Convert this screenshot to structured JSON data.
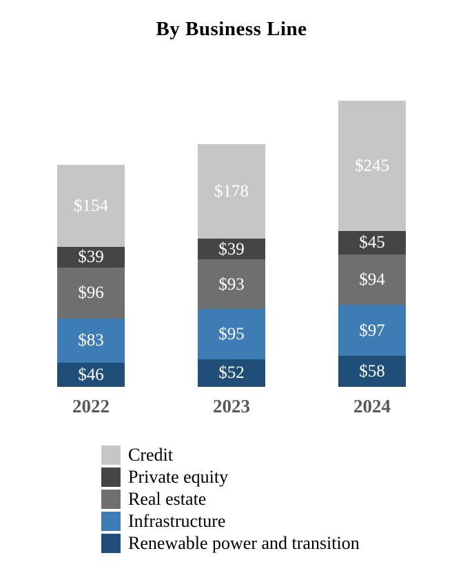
{
  "chart_data": {
    "type": "bar",
    "stacked": true,
    "title": "By Business Line",
    "categories": [
      "2022",
      "2023",
      "2024"
    ],
    "series": [
      {
        "name": "Credit",
        "color": "#C6C6C6",
        "values": [
          154,
          178,
          245
        ]
      },
      {
        "name": "Private equity",
        "color": "#454545",
        "values": [
          39,
          39,
          45
        ]
      },
      {
        "name": "Real estate",
        "color": "#6F6F6F",
        "values": [
          96,
          93,
          94
        ]
      },
      {
        "name": "Infrastructure",
        "color": "#3E7CB5",
        "values": [
          83,
          95,
          97
        ]
      },
      {
        "name": "Renewable power and transition",
        "color": "#1F4E79",
        "values": [
          46,
          52,
          58
        ]
      }
    ],
    "stack_order_bottom_to_top": [
      "Renewable power and transition",
      "Infrastructure",
      "Real estate",
      "Private equity",
      "Credit"
    ],
    "totals": [
      418,
      457,
      539
    ],
    "data_label_prefix": "$",
    "data_label_color": "#FFFFFF",
    "x_axis_label_color": "#595959",
    "title_color": "#000000",
    "legend_text_color": "#000000",
    "legend_position": "bottom-left",
    "grid": false,
    "y_axis_visible": false
  }
}
